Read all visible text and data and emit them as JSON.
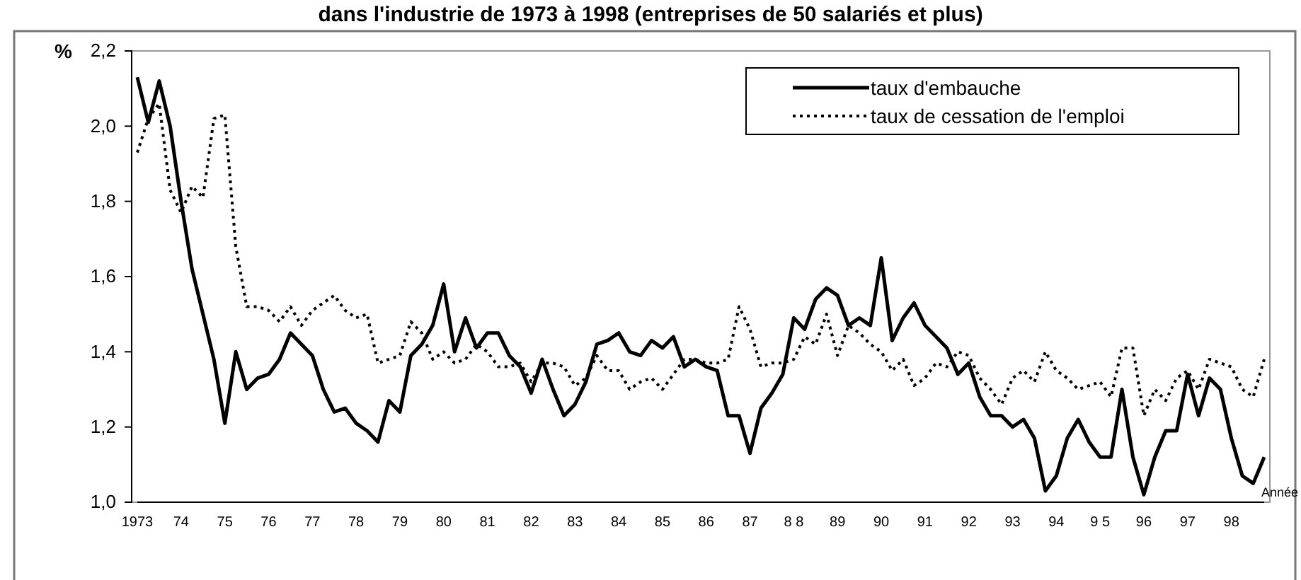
{
  "chart_data": {
    "type": "line",
    "title": "dans l'industrie de 1973 à 1998 (entreprises de 50 salariés et plus)",
    "ylabel": "%",
    "xlabel": "Année",
    "categories": [
      "1973",
      null,
      null,
      null,
      "74",
      null,
      null,
      null,
      "75",
      null,
      null,
      null,
      "76",
      null,
      null,
      null,
      "77",
      null,
      null,
      null,
      "78",
      null,
      null,
      null,
      "79",
      null,
      null,
      null,
      "80",
      null,
      null,
      null,
      "81",
      null,
      null,
      null,
      "82",
      null,
      null,
      null,
      "83",
      null,
      null,
      null,
      "84",
      null,
      null,
      null,
      "85",
      null,
      null,
      null,
      "86",
      null,
      null,
      null,
      "87",
      null,
      null,
      null,
      "8 8",
      null,
      null,
      null,
      "89",
      null,
      null,
      null,
      "90",
      null,
      null,
      null,
      "91",
      null,
      null,
      null,
      "92",
      null,
      null,
      null,
      "93",
      null,
      null,
      null,
      "94",
      null,
      null,
      null,
      "9 5",
      null,
      null,
      null,
      "96",
      null,
      null,
      null,
      "97",
      null,
      null,
      null,
      "98",
      null,
      null,
      null
    ],
    "series": [
      {
        "name": "taux d'embauche",
        "color": "#000000",
        "line_style": "solid",
        "values": [
          2.13,
          2.01,
          2.12,
          2.0,
          1.8,
          1.62,
          1.5,
          1.38,
          1.21,
          1.4,
          1.3,
          1.33,
          1.34,
          1.38,
          1.45,
          1.42,
          1.39,
          1.3,
          1.24,
          1.25,
          1.21,
          1.19,
          1.16,
          1.27,
          1.24,
          1.39,
          1.42,
          1.47,
          1.58,
          1.4,
          1.49,
          1.41,
          1.45,
          1.45,
          1.39,
          1.36,
          1.29,
          1.38,
          1.3,
          1.23,
          1.26,
          1.32,
          1.42,
          1.43,
          1.45,
          1.4,
          1.39,
          1.43,
          1.41,
          1.44,
          1.36,
          1.38,
          1.36,
          1.35,
          1.23,
          1.23,
          1.13,
          1.25,
          1.29,
          1.34,
          1.49,
          1.46,
          1.54,
          1.57,
          1.55,
          1.47,
          1.49,
          1.47,
          1.65,
          1.43,
          1.49,
          1.53,
          1.47,
          1.44,
          1.41,
          1.34,
          1.37,
          1.28,
          1.23,
          1.23,
          1.2,
          1.22,
          1.17,
          1.03,
          1.07,
          1.17,
          1.22,
          1.16,
          1.12,
          1.12,
          1.3,
          1.12,
          1.02,
          1.12,
          1.19,
          1.19,
          1.34,
          1.23,
          1.33,
          1.3,
          1.17,
          1.07,
          1.05,
          1.12
        ]
      },
      {
        "name": "taux de cessation de l'emploi",
        "color": "#000000",
        "line_style": "dotted",
        "values": [
          1.93,
          2.02,
          2.06,
          1.83,
          1.77,
          1.84,
          1.81,
          2.02,
          2.03,
          1.68,
          1.52,
          1.52,
          1.51,
          1.48,
          1.52,
          1.47,
          1.51,
          1.53,
          1.55,
          1.51,
          1.49,
          1.5,
          1.37,
          1.38,
          1.39,
          1.48,
          1.45,
          1.38,
          1.4,
          1.37,
          1.38,
          1.42,
          1.4,
          1.36,
          1.36,
          1.37,
          1.32,
          1.37,
          1.37,
          1.36,
          1.31,
          1.33,
          1.39,
          1.35,
          1.35,
          1.3,
          1.32,
          1.33,
          1.3,
          1.34,
          1.38,
          1.38,
          1.37,
          1.37,
          1.38,
          1.52,
          1.46,
          1.36,
          1.37,
          1.37,
          1.38,
          1.44,
          1.42,
          1.5,
          1.39,
          1.47,
          1.45,
          1.42,
          1.4,
          1.35,
          1.38,
          1.31,
          1.33,
          1.37,
          1.36,
          1.4,
          1.39,
          1.33,
          1.3,
          1.26,
          1.33,
          1.35,
          1.32,
          1.4,
          1.35,
          1.33,
          1.3,
          1.31,
          1.32,
          1.28,
          1.41,
          1.41,
          1.23,
          1.3,
          1.27,
          1.33,
          1.35,
          1.3,
          1.38,
          1.37,
          1.36,
          1.3,
          1.28,
          1.38
        ]
      }
    ],
    "ylim": [
      1.0,
      2.2
    ],
    "yticks": [
      {
        "value": 1.0,
        "label": "1,0"
      },
      {
        "value": 1.2,
        "label": "1,2"
      },
      {
        "value": 1.4,
        "label": "1,4"
      },
      {
        "value": 1.6,
        "label": "1,6"
      },
      {
        "value": 1.8,
        "label": "1,8"
      },
      {
        "value": 2.0,
        "label": "2,0"
      },
      {
        "value": 2.2,
        "label": "2,2"
      }
    ],
    "grid": false,
    "legend": "top right"
  }
}
